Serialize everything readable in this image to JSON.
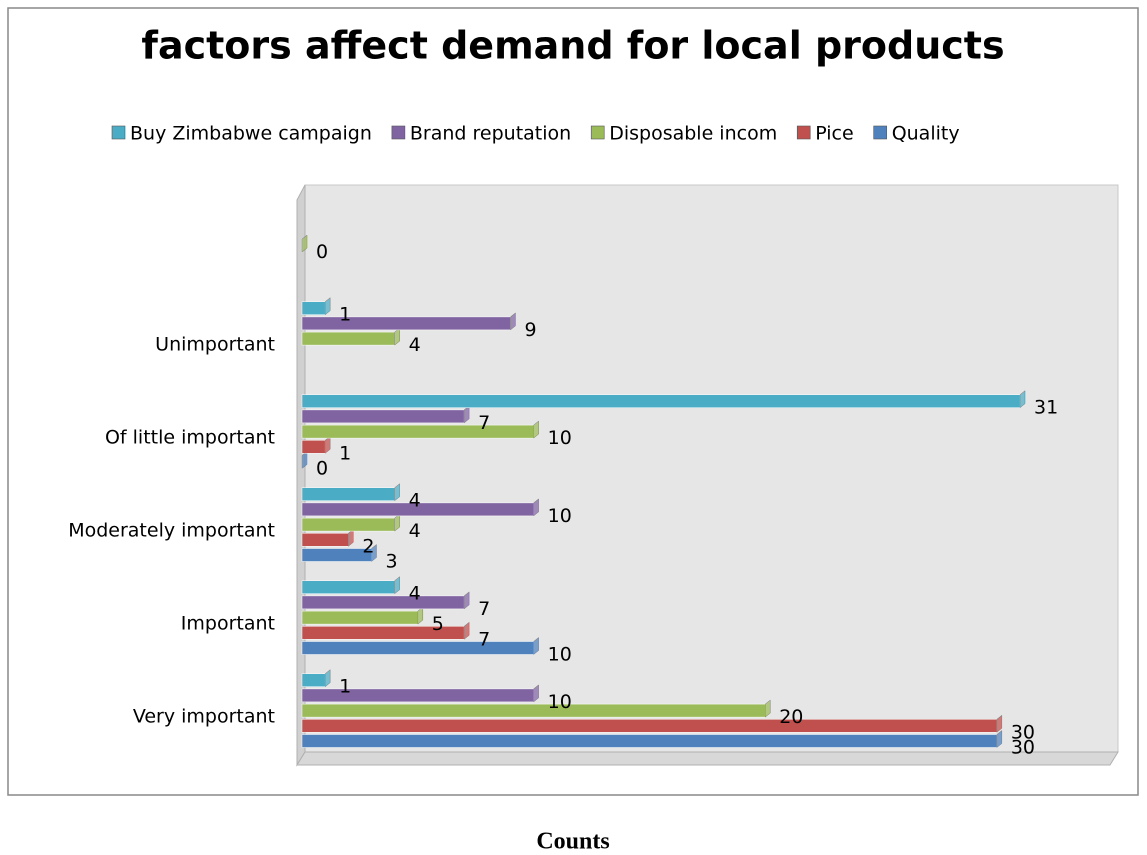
{
  "chart_data": {
    "type": "bar",
    "orientation": "horizontal",
    "title": "factors affect demand for local products",
    "caption": "Counts",
    "categories": [
      "Very important",
      "Important",
      "Moderately important",
      "Of little important",
      "Unimportant",
      null
    ],
    "series": [
      {
        "name": "Quality",
        "color": "#4f81bd",
        "values": [
          30,
          10,
          3,
          0,
          null,
          null
        ]
      },
      {
        "name": "Pice",
        "color": "#c0504d",
        "values": [
          30,
          7,
          2,
          1,
          null,
          null
        ]
      },
      {
        "name": "Disposable incom",
        "color": "#9bbb59",
        "values": [
          20,
          5,
          4,
          10,
          4,
          0
        ]
      },
      {
        "name": "Brand reputation",
        "color": "#8064a2",
        "values": [
          10,
          7,
          10,
          7,
          9,
          null
        ]
      },
      {
        "name": "Buy Zimbabwe campaign",
        "color": "#4bacc6",
        "values": [
          1,
          4,
          4,
          31,
          1,
          null
        ]
      }
    ]
  }
}
